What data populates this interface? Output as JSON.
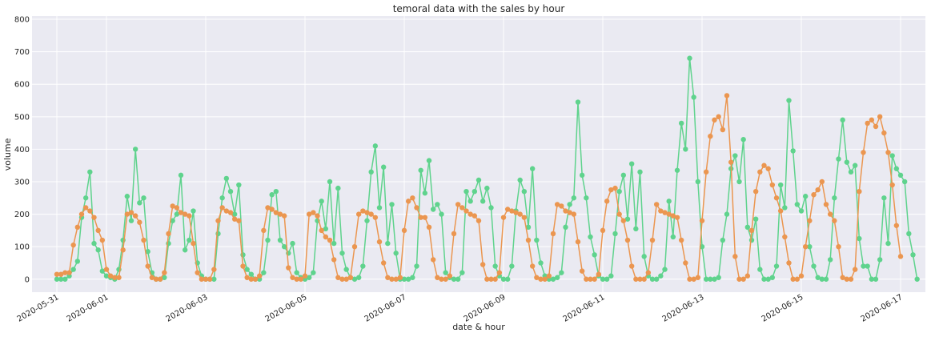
{
  "chart_data": {
    "type": "line",
    "title": "temoral data with the sales by hour",
    "xlabel": "date & hour",
    "ylabel": "volume",
    "xlim": [
      "2020-05-30T12:00",
      "2020-06-17T12:00"
    ],
    "ylim": [
      -40,
      810
    ],
    "yticks": [
      0,
      100,
      200,
      300,
      400,
      500,
      600,
      700,
      800
    ],
    "xticks": [
      "2020-05-31",
      "2020-06-01",
      "2020-06-03",
      "2020-06-05",
      "2020-06-07",
      "2020-06-09",
      "2020-06-11",
      "2020-06-13",
      "2020-06-15",
      "2020-06-17"
    ],
    "x_start": "2020-05-31T00:00",
    "x_step_hours": 2,
    "grid": true,
    "background": "#eaeaf2",
    "series": [
      {
        "color": "#5fd38d",
        "values": [
          0,
          0,
          0,
          10,
          30,
          55,
          190,
          250,
          330,
          110,
          90,
          25,
          10,
          5,
          0,
          30,
          120,
          255,
          180,
          400,
          235,
          250,
          85,
          20,
          0,
          0,
          5,
          110,
          180,
          200,
          320,
          90,
          120,
          210,
          50,
          10,
          0,
          0,
          0,
          140,
          250,
          310,
          270,
          200,
          290,
          75,
          30,
          15,
          0,
          0,
          20,
          120,
          260,
          270,
          120,
          100,
          80,
          110,
          20,
          5,
          0,
          5,
          20,
          180,
          240,
          155,
          300,
          110,
          280,
          80,
          30,
          5,
          0,
          5,
          40,
          180,
          330,
          410,
          220,
          345,
          110,
          230,
          80,
          0,
          0,
          0,
          5,
          40,
          335,
          265,
          365,
          215,
          230,
          200,
          20,
          5,
          0,
          0,
          20,
          270,
          240,
          270,
          305,
          240,
          280,
          220,
          40,
          10,
          0,
          0,
          40,
          210,
          305,
          270,
          160,
          340,
          120,
          50,
          10,
          0,
          0,
          5,
          20,
          160,
          230,
          250,
          545,
          320,
          250,
          130,
          75,
          10,
          0,
          0,
          10,
          140,
          270,
          320,
          185,
          355,
          155,
          330,
          70,
          10,
          0,
          0,
          10,
          30,
          240,
          130,
          335,
          480,
          400,
          680,
          560,
          300,
          100,
          0,
          0,
          0,
          5,
          120,
          200,
          340,
          380,
          300,
          430,
          160,
          120,
          185,
          30,
          0,
          0,
          5,
          40,
          290,
          220,
          550,
          395,
          230,
          210,
          255,
          100,
          40,
          5,
          0,
          0,
          60,
          250,
          370,
          490,
          360,
          330,
          350,
          125,
          40,
          40,
          0,
          0,
          60,
          250,
          110,
          380,
          340,
          320,
          300,
          140,
          75,
          0
        ]
      },
      {
        "color": "#eb9650",
        "values": [
          15,
          15,
          20,
          20,
          105,
          160,
          200,
          220,
          210,
          190,
          150,
          120,
          30,
          10,
          5,
          5,
          90,
          200,
          205,
          195,
          175,
          120,
          40,
          5,
          0,
          0,
          20,
          140,
          225,
          220,
          205,
          200,
          195,
          110,
          20,
          0,
          0,
          0,
          30,
          180,
          220,
          210,
          205,
          185,
          180,
          40,
          5,
          0,
          0,
          10,
          150,
          220,
          215,
          205,
          200,
          195,
          35,
          5,
          0,
          0,
          10,
          200,
          205,
          195,
          150,
          130,
          120,
          60,
          5,
          0,
          0,
          5,
          100,
          200,
          210,
          205,
          200,
          190,
          115,
          50,
          5,
          0,
          0,
          5,
          150,
          240,
          250,
          220,
          190,
          190,
          160,
          60,
          5,
          0,
          0,
          10,
          140,
          230,
          220,
          210,
          200,
          195,
          180,
          45,
          0,
          0,
          0,
          20,
          190,
          215,
          210,
          205,
          200,
          190,
          120,
          40,
          5,
          0,
          0,
          10,
          140,
          230,
          225,
          210,
          205,
          200,
          115,
          25,
          0,
          0,
          0,
          15,
          150,
          240,
          275,
          280,
          200,
          180,
          120,
          40,
          0,
          0,
          0,
          20,
          120,
          230,
          210,
          205,
          200,
          195,
          190,
          120,
          50,
          0,
          0,
          5,
          180,
          330,
          440,
          490,
          500,
          460,
          565,
          360,
          70,
          0,
          0,
          10,
          150,
          270,
          330,
          350,
          340,
          290,
          250,
          210,
          130,
          50,
          0,
          0,
          10,
          100,
          180,
          260,
          275,
          300,
          230,
          200,
          180,
          100,
          5,
          0,
          0,
          30,
          270,
          390,
          480,
          490,
          470,
          500,
          450,
          390,
          290,
          165,
          70
        ]
      }
    ]
  }
}
